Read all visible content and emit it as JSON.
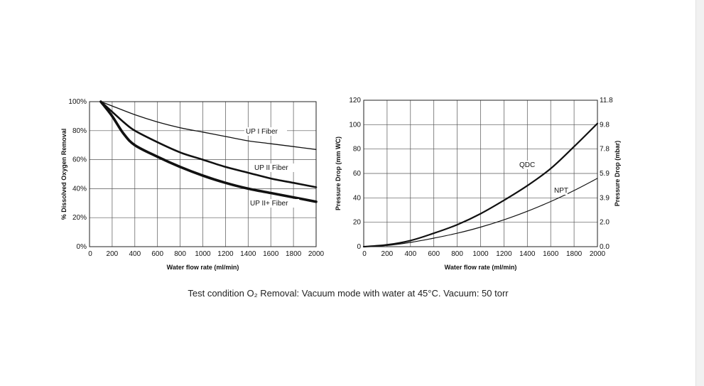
{
  "caption": "Test condition O₂ Removal: Vacuum mode with water at 45°C. Vacuum: 50 torr",
  "chart_data": [
    {
      "type": "line",
      "xlabel": "Water flow rate (ml/min)",
      "ylabel": "% Dissolved Oxygen Removal",
      "x_ticks": [
        "0",
        "200",
        "400",
        "600",
        "800",
        "1000",
        "1200",
        "1400",
        "1600",
        "1800",
        "2000"
      ],
      "y_ticks": [
        "0%",
        "20%",
        "40%",
        "60%",
        "80%",
        "100%"
      ],
      "xlim": [
        0,
        2000
      ],
      "ylim": [
        0,
        100
      ],
      "grid": true,
      "series": [
        {
          "name": "UP I Fiber",
          "x": [
            100,
            200,
            400,
            600,
            800,
            1000,
            1200,
            1400,
            1600,
            1800,
            2000
          ],
          "y": [
            100,
            97,
            91,
            86,
            82,
            79,
            76,
            73,
            71,
            69,
            67
          ]
        },
        {
          "name": "UP II Fiber",
          "x": [
            100,
            200,
            300,
            400,
            600,
            800,
            1000,
            1200,
            1400,
            1600,
            1800,
            2000
          ],
          "y": [
            100,
            93,
            86,
            80,
            72,
            65,
            60,
            55,
            51,
            47,
            44,
            41
          ]
        },
        {
          "name": "UP II+ Fiber",
          "x": [
            100,
            200,
            300,
            400,
            600,
            800,
            1000,
            1200,
            1400,
            1600,
            1800,
            2000
          ],
          "y": [
            100,
            90,
            78,
            70,
            62,
            55,
            49,
            44,
            40,
            37,
            34,
            31
          ]
        }
      ]
    },
    {
      "type": "line",
      "xlabel": "Water flow rate (ml/min)",
      "ylabel": "Pressure Drop (mm WC)",
      "y2label": "Pressure Drop (mbar)",
      "x_ticks": [
        "0",
        "200",
        "400",
        "600",
        "800",
        "1000",
        "1200",
        "1400",
        "1600",
        "1800",
        "2000"
      ],
      "y_ticks": [
        "0",
        "20",
        "40",
        "60",
        "80",
        "100",
        "120"
      ],
      "y2_ticks": [
        "0.0",
        "2.0",
        "3.9",
        "5.9",
        "7.8",
        "9.8",
        "11.8"
      ],
      "y_tick_values": [
        0,
        20,
        40,
        60,
        80,
        100,
        120
      ],
      "y2_tick_values": [
        0,
        20,
        40,
        60,
        80,
        100,
        120
      ],
      "xlim": [
        0,
        2000
      ],
      "ylim": [
        0,
        120
      ],
      "grid": true,
      "series": [
        {
          "name": "QDC",
          "x": [
            0,
            200,
            400,
            600,
            800,
            1000,
            1200,
            1400,
            1600,
            1800,
            2000
          ],
          "y": [
            0,
            1.5,
            5,
            11,
            18,
            27,
            38,
            50,
            64,
            82,
            101
          ]
        },
        {
          "name": "NPT",
          "x": [
            0,
            200,
            400,
            600,
            800,
            1000,
            1200,
            1400,
            1600,
            1800,
            2000
          ],
          "y": [
            0,
            1,
            3.5,
            7,
            11,
            16,
            22,
            29,
            37,
            46,
            56
          ]
        }
      ]
    }
  ]
}
